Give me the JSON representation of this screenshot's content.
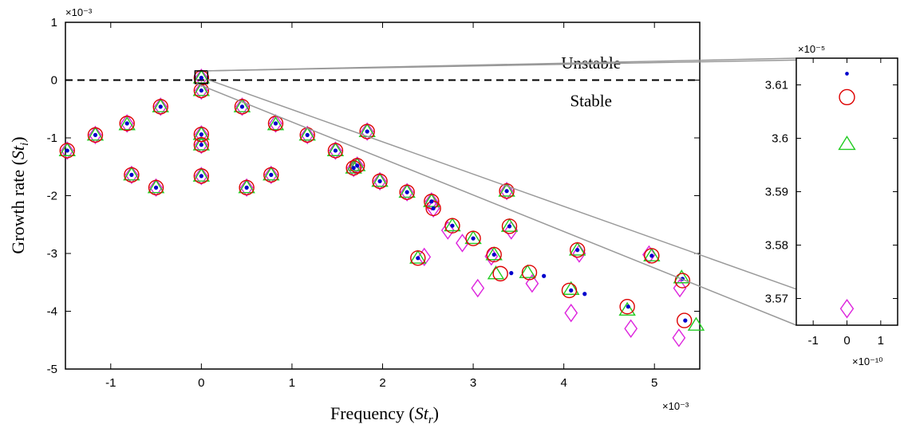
{
  "chart_data": [
    {
      "name": "main-plot",
      "type": "scatter",
      "xlabel": "Frequency (St_r)",
      "xlabel_parts": {
        "main": "Frequency (",
        "var": "St",
        "sub": "r",
        "close": ")"
      },
      "ylabel": "Growth rate (St_i)",
      "ylabel_parts": {
        "main": "Growth rate (",
        "var": "St",
        "sub": "i",
        "close": ")"
      },
      "x_exponent": "×10⁻³",
      "y_exponent": "×10⁻³",
      "xlim": [
        -1.5,
        5.5
      ],
      "ylim": [
        -5,
        1
      ],
      "xticks": [
        -1,
        0,
        1,
        2,
        3,
        4,
        5
      ],
      "yticks": [
        1,
        0,
        -1,
        -2,
        -3,
        -4,
        -5
      ],
      "threshold_line": {
        "y": 0,
        "style": "dashed"
      },
      "annotations": [
        {
          "text": "Unstable",
          "x": 4.3,
          "y": 0.3
        },
        {
          "text": "Stable",
          "x": 4.3,
          "y": -0.36
        }
      ],
      "zoom_box": {
        "x": [
          -0.07,
          0.07
        ],
        "y": [
          -0.06,
          0.16
        ]
      },
      "series": [
        {
          "name": "dot",
          "marker": "dot",
          "color": "#0000cc",
          "points": [
            [
              -1.48,
              -1.22
            ],
            [
              -1.17,
              -0.95
            ],
            [
              -0.82,
              -0.75
            ],
            [
              -0.77,
              -1.64
            ],
            [
              -0.5,
              -1.86
            ],
            [
              -0.45,
              -0.46
            ],
            [
              0,
              0.04
            ],
            [
              0,
              -0.18
            ],
            [
              0,
              -0.94
            ],
            [
              0,
              -1.12
            ],
            [
              0,
              -1.66
            ],
            [
              0.45,
              -0.46
            ],
            [
              0.5,
              -1.86
            ],
            [
              0.77,
              -1.64
            ],
            [
              0.82,
              -0.75
            ],
            [
              1.17,
              -0.95
            ],
            [
              1.48,
              -1.22
            ],
            [
              1.68,
              -1.52
            ],
            [
              1.72,
              -1.48
            ],
            [
              1.83,
              -0.89
            ],
            [
              1.97,
              -1.75
            ],
            [
              2.27,
              -1.94
            ],
            [
              2.39,
              -3.08
            ],
            [
              2.54,
              -2.1
            ],
            [
              2.56,
              -2.22
            ],
            [
              2.77,
              -2.52
            ],
            [
              3.0,
              -2.74
            ],
            [
              3.23,
              -3.02
            ],
            [
              3.37,
              -1.92
            ],
            [
              3.4,
              -2.53
            ],
            [
              3.42,
              -3.34
            ],
            [
              3.78,
              -3.39
            ],
            [
              4.08,
              -3.64
            ],
            [
              4.15,
              -2.94
            ],
            [
              4.23,
              -3.7
            ],
            [
              4.71,
              -3.92
            ],
            [
              4.97,
              -3.04
            ],
            [
              5.31,
              -3.44
            ],
            [
              5.34,
              -4.16
            ]
          ]
        },
        {
          "name": "circle",
          "marker": "circle",
          "color": "#dd0000",
          "points": [
            [
              -1.48,
              -1.22
            ],
            [
              -1.17,
              -0.95
            ],
            [
              -0.82,
              -0.75
            ],
            [
              -0.77,
              -1.64
            ],
            [
              -0.5,
              -1.86
            ],
            [
              -0.45,
              -0.46
            ],
            [
              0,
              0.04
            ],
            [
              0,
              -0.18
            ],
            [
              0,
              -0.94
            ],
            [
              0,
              -1.12
            ],
            [
              0,
              -1.66
            ],
            [
              0.45,
              -0.46
            ],
            [
              0.5,
              -1.86
            ],
            [
              0.77,
              -1.64
            ],
            [
              0.82,
              -0.75
            ],
            [
              1.17,
              -0.95
            ],
            [
              1.48,
              -1.22
            ],
            [
              1.68,
              -1.52
            ],
            [
              1.72,
              -1.48
            ],
            [
              1.83,
              -0.89
            ],
            [
              1.97,
              -1.75
            ],
            [
              2.27,
              -1.94
            ],
            [
              2.39,
              -3.08
            ],
            [
              2.54,
              -2.1
            ],
            [
              2.56,
              -2.22
            ],
            [
              2.77,
              -2.52
            ],
            [
              3.0,
              -2.74
            ],
            [
              3.23,
              -3.02
            ],
            [
              3.3,
              -3.35
            ],
            [
              3.37,
              -1.92
            ],
            [
              3.4,
              -2.53
            ],
            [
              3.62,
              -3.33
            ],
            [
              4.06,
              -3.64
            ],
            [
              4.15,
              -2.94
            ],
            [
              4.7,
              -3.92
            ],
            [
              4.97,
              -3.04
            ],
            [
              5.31,
              -3.47
            ],
            [
              5.33,
              -4.16
            ]
          ]
        },
        {
          "name": "triangle",
          "marker": "triangle",
          "color": "#22cc22",
          "points": [
            [
              -1.48,
              -1.22
            ],
            [
              -1.17,
              -0.95
            ],
            [
              -0.82,
              -0.77
            ],
            [
              -0.77,
              -1.64
            ],
            [
              -0.5,
              -1.86
            ],
            [
              -0.45,
              -0.46
            ],
            [
              0,
              0.04
            ],
            [
              0,
              -0.18
            ],
            [
              0,
              -0.94
            ],
            [
              0,
              -1.12
            ],
            [
              0,
              -1.66
            ],
            [
              0.45,
              -0.46
            ],
            [
              0.5,
              -1.86
            ],
            [
              0.77,
              -1.64
            ],
            [
              0.82,
              -0.77
            ],
            [
              1.17,
              -0.95
            ],
            [
              1.48,
              -1.22
            ],
            [
              1.68,
              -1.52
            ],
            [
              1.72,
              -1.48
            ],
            [
              1.83,
              -0.89
            ],
            [
              1.97,
              -1.75
            ],
            [
              2.27,
              -1.94
            ],
            [
              2.39,
              -3.08
            ],
            [
              2.54,
              -2.1
            ],
            [
              2.77,
              -2.52
            ],
            [
              3.0,
              -2.74
            ],
            [
              3.23,
              -3.02
            ],
            [
              3.25,
              -3.35
            ],
            [
              3.37,
              -1.92
            ],
            [
              3.4,
              -2.53
            ],
            [
              3.6,
              -3.33
            ],
            [
              4.08,
              -3.62
            ],
            [
              4.15,
              -2.94
            ],
            [
              4.7,
              -3.98
            ],
            [
              4.97,
              -3.04
            ],
            [
              5.3,
              -3.42
            ],
            [
              5.46,
              -4.24
            ]
          ]
        },
        {
          "name": "diamond",
          "marker": "diamond",
          "color": "#dd22dd",
          "points": [
            [
              -1.48,
              -1.22
            ],
            [
              -1.17,
              -0.95
            ],
            [
              -0.82,
              -0.75
            ],
            [
              -0.77,
              -1.64
            ],
            [
              -0.5,
              -1.86
            ],
            [
              -0.45,
              -0.46
            ],
            [
              0,
              0.04
            ],
            [
              0,
              -0.18
            ],
            [
              0,
              -0.94
            ],
            [
              0,
              -1.12
            ],
            [
              0,
              -1.66
            ],
            [
              0.45,
              -0.46
            ],
            [
              0.5,
              -1.86
            ],
            [
              0.77,
              -1.64
            ],
            [
              0.82,
              -0.75
            ],
            [
              1.17,
              -0.95
            ],
            [
              1.48,
              -1.22
            ],
            [
              1.68,
              -1.52
            ],
            [
              1.72,
              -1.48
            ],
            [
              1.83,
              -0.89
            ],
            [
              1.97,
              -1.75
            ],
            [
              2.27,
              -1.94
            ],
            [
              2.46,
              -3.06
            ],
            [
              2.54,
              -2.1
            ],
            [
              2.56,
              -2.22
            ],
            [
              2.72,
              -2.6
            ],
            [
              2.88,
              -2.82
            ],
            [
              3.05,
              -3.6
            ],
            [
              3.2,
              -3.05
            ],
            [
              3.37,
              -1.92
            ],
            [
              3.42,
              -2.6
            ],
            [
              3.65,
              -3.52
            ],
            [
              4.08,
              -4.03
            ],
            [
              4.17,
              -3.0
            ],
            [
              4.74,
              -4.3
            ],
            [
              4.94,
              -3.02
            ],
            [
              5.28,
              -3.6
            ],
            [
              5.27,
              -4.46
            ]
          ]
        }
      ]
    },
    {
      "name": "inset-plot",
      "type": "scatter",
      "x_exponent": "×10⁻¹⁰",
      "y_exponent": "×10⁻⁵",
      "xlim": [
        -1.5,
        1.5
      ],
      "ylim": [
        3.565,
        3.615
      ],
      "xticks": [
        -1,
        0,
        1
      ],
      "yticks": [
        3.61,
        3.6,
        3.59,
        3.58,
        3.57
      ],
      "series": [
        {
          "name": "dot",
          "marker": "dot",
          "color": "#0000cc",
          "points": [
            [
              0,
              3.6121
            ]
          ]
        },
        {
          "name": "circle",
          "marker": "circle",
          "color": "#dd0000",
          "points": [
            [
              0,
              3.6077
            ]
          ]
        },
        {
          "name": "triangle",
          "marker": "triangle",
          "color": "#22cc22",
          "points": [
            [
              0,
              3.5989
            ]
          ]
        },
        {
          "name": "diamond",
          "marker": "diamond",
          "color": "#dd22dd",
          "points": [
            [
              0,
              3.5681
            ]
          ]
        }
      ]
    }
  ]
}
